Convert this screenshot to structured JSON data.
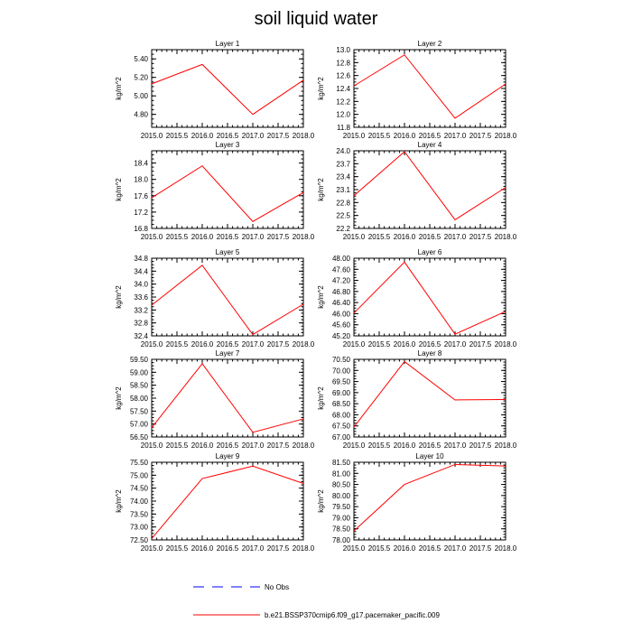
{
  "title": "soil liquid water",
  "legend": {
    "placement": "bottom",
    "entries": [
      {
        "label": "No Obs",
        "style": "dashed",
        "color": "#0000ff"
      },
      {
        "label": "b.e21.BSSP370cmip6.f09_g17.pacemaker_pacific.009",
        "style": "solid",
        "color": "#ff0000"
      }
    ]
  },
  "series_color": "#ff0000",
  "chart_data": [
    {
      "type": "line",
      "title": "Layer 1",
      "ylabel": "kg/m^2",
      "x": [
        2015.0,
        2016.0,
        2017.0,
        2018.0
      ],
      "values": [
        5.13,
        5.34,
        4.8,
        5.17
      ],
      "xlim": [
        2015.0,
        2018.0
      ],
      "ylim": [
        4.66,
        5.5
      ],
      "xticks": [
        "2015.0",
        "2015.5",
        "2016.0",
        "2016.5",
        "2017.0",
        "2017.5",
        "2018.0"
      ],
      "yticks": [
        4.8,
        5.0,
        5.2,
        5.4
      ],
      "ytick_labels": [
        "4.80",
        "5.00",
        "5.20",
        "5.40"
      ]
    },
    {
      "type": "line",
      "title": "Layer 2",
      "ylabel": "kg/m^2",
      "x": [
        2015.0,
        2016.0,
        2017.0,
        2018.0
      ],
      "values": [
        12.44,
        12.92,
        11.94,
        12.47
      ],
      "xlim": [
        2015.0,
        2018.0
      ],
      "ylim": [
        11.8,
        13.0
      ],
      "xticks": [
        "2015.0",
        "2015.5",
        "2016.0",
        "2016.5",
        "2017.0",
        "2017.5",
        "2018.0"
      ],
      "yticks": [
        11.8,
        12.0,
        12.2,
        12.4,
        12.6,
        12.8,
        13.0
      ],
      "ytick_labels": [
        "11.8",
        "12.0",
        "12.2",
        "12.4",
        "12.6",
        "12.8",
        "13.0"
      ]
    },
    {
      "type": "line",
      "title": "Layer 3",
      "ylabel": "kg/m^2",
      "x": [
        2015.0,
        2016.0,
        2017.0,
        2018.0
      ],
      "values": [
        17.55,
        18.33,
        16.97,
        17.68
      ],
      "xlim": [
        2015.0,
        2018.0
      ],
      "ylim": [
        16.8,
        18.7
      ],
      "xticks": [
        "2015.0",
        "2015.5",
        "2016.0",
        "2016.5",
        "2017.0",
        "2017.5",
        "2018.0"
      ],
      "yticks": [
        16.8,
        17.2,
        17.6,
        18.0,
        18.4
      ],
      "ytick_labels": [
        "16.8",
        "17.2",
        "17.6",
        "18.0",
        "18.4"
      ]
    },
    {
      "type": "line",
      "title": "Layer 4",
      "ylabel": "kg/m^2",
      "x": [
        2015.0,
        2016.0,
        2017.0,
        2018.0
      ],
      "values": [
        22.96,
        23.98,
        22.4,
        23.15
      ],
      "xlim": [
        2015.0,
        2018.0
      ],
      "ylim": [
        22.2,
        24.0
      ],
      "xticks": [
        "2015.0",
        "2015.5",
        "2016.0",
        "2016.5",
        "2017.0",
        "2017.5",
        "2018.0"
      ],
      "yticks": [
        22.2,
        22.5,
        22.8,
        23.1,
        23.4,
        23.7,
        24.0
      ],
      "ytick_labels": [
        "22.2",
        "22.5",
        "22.8",
        "23.1",
        "23.4",
        "23.7",
        "24.0"
      ]
    },
    {
      "type": "line",
      "title": "Layer 5",
      "ylabel": "kg/m^2",
      "x": [
        2015.0,
        2016.0,
        2017.0,
        2018.0
      ],
      "values": [
        33.35,
        34.58,
        32.44,
        33.38
      ],
      "xlim": [
        2015.0,
        2018.0
      ],
      "ylim": [
        32.4,
        34.8
      ],
      "xticks": [
        "2015.0",
        "2015.5",
        "2016.0",
        "2016.5",
        "2017.0",
        "2017.5",
        "2018.0"
      ],
      "yticks": [
        32.4,
        32.8,
        33.2,
        33.6,
        34.0,
        34.4,
        34.8
      ],
      "ytick_labels": [
        "32.4",
        "32.8",
        "33.2",
        "33.6",
        "34.0",
        "34.4",
        "34.8"
      ]
    },
    {
      "type": "line",
      "title": "Layer 6",
      "ylabel": "kg/m^2",
      "x": [
        2015.0,
        2016.0,
        2017.0,
        2018.0
      ],
      "values": [
        46.02,
        47.86,
        45.26,
        46.08
      ],
      "xlim": [
        2015.0,
        2018.0
      ],
      "ylim": [
        45.2,
        48.0
      ],
      "xticks": [
        "2015.0",
        "2015.5",
        "2016.0",
        "2016.5",
        "2017.0",
        "2017.5",
        "2018.0"
      ],
      "yticks": [
        45.2,
        45.6,
        46.0,
        46.4,
        46.8,
        47.2,
        47.6,
        48.0
      ],
      "ytick_labels": [
        "45.20",
        "45.60",
        "46.00",
        "46.40",
        "46.80",
        "47.20",
        "47.60",
        "48.00"
      ]
    },
    {
      "type": "line",
      "title": "Layer 7",
      "ylabel": "kg/m^2",
      "x": [
        2015.0,
        2016.0,
        2017.0,
        2018.0
      ],
      "values": [
        56.86,
        59.33,
        56.68,
        57.2
      ],
      "xlim": [
        2015.0,
        2018.0
      ],
      "ylim": [
        56.5,
        59.5
      ],
      "xticks": [
        "2015.0",
        "2015.5",
        "2016.0",
        "2016.5",
        "2017.0",
        "2017.5",
        "2018.0"
      ],
      "yticks": [
        56.5,
        57.0,
        57.5,
        58.0,
        58.5,
        59.0,
        59.5
      ],
      "ytick_labels": [
        "56.50",
        "57.00",
        "57.50",
        "58.00",
        "58.50",
        "59.00",
        "59.50"
      ]
    },
    {
      "type": "line",
      "title": "Layer 8",
      "ylabel": "kg/m^2",
      "x": [
        2015.0,
        2016.0,
        2017.0,
        2018.0
      ],
      "values": [
        67.45,
        70.4,
        68.67,
        68.69
      ],
      "xlim": [
        2015.0,
        2018.0
      ],
      "ylim": [
        67.0,
        70.5
      ],
      "xticks": [
        "2015.0",
        "2015.5",
        "2016.0",
        "2016.5",
        "2017.0",
        "2017.5",
        "2018.0"
      ],
      "yticks": [
        67.0,
        67.5,
        68.0,
        68.5,
        69.0,
        69.5,
        70.0,
        70.5
      ],
      "ytick_labels": [
        "67.00",
        "67.50",
        "68.00",
        "68.50",
        "69.00",
        "69.50",
        "70.00",
        "70.50"
      ]
    },
    {
      "type": "line",
      "title": "Layer 9",
      "ylabel": "kg/m^2",
      "x": [
        2015.0,
        2016.0,
        2017.0,
        2018.0
      ],
      "values": [
        72.55,
        74.87,
        75.35,
        74.68
      ],
      "xlim": [
        2015.0,
        2018.0
      ],
      "ylim": [
        72.5,
        75.5
      ],
      "xticks": [
        "2015.0",
        "2015.5",
        "2016.0",
        "2016.5",
        "2017.0",
        "2017.5",
        "2018.0"
      ],
      "yticks": [
        72.5,
        73.0,
        73.5,
        74.0,
        74.5,
        75.0,
        75.5
      ],
      "ytick_labels": [
        "72.50",
        "73.00",
        "73.50",
        "74.00",
        "74.50",
        "75.00",
        "75.50"
      ]
    },
    {
      "type": "line",
      "title": "Layer 10",
      "ylabel": "kg/m^2",
      "x": [
        2015.0,
        2016.0,
        2017.0,
        2018.0
      ],
      "values": [
        78.4,
        80.5,
        81.4,
        81.33
      ],
      "xlim": [
        2015.0,
        2018.0
      ],
      "ylim": [
        78.0,
        81.5
      ],
      "xticks": [
        "2015.0",
        "2015.5",
        "2016.0",
        "2016.5",
        "2017.0",
        "2017.5",
        "2018.0"
      ],
      "yticks": [
        78.0,
        78.5,
        79.0,
        79.5,
        80.0,
        80.5,
        81.0,
        81.5
      ],
      "ytick_labels": [
        "78.00",
        "78.50",
        "79.00",
        "79.50",
        "80.00",
        "80.50",
        "81.00",
        "81.50"
      ]
    }
  ]
}
